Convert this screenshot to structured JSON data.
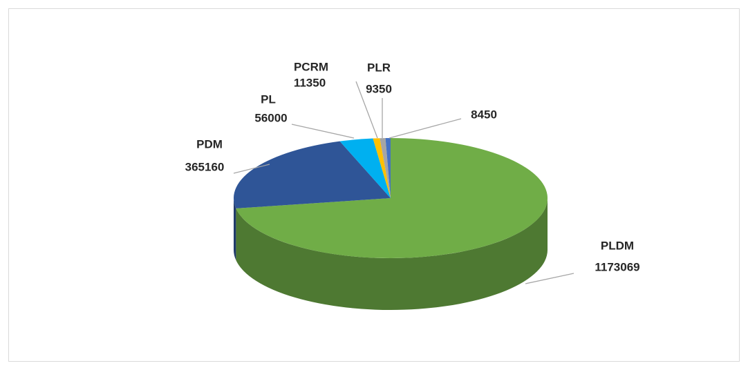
{
  "chart_data": {
    "type": "pie",
    "categories": [
      "PLDM",
      "PDM",
      "PL",
      "PCRM",
      "PLR",
      null
    ],
    "values": [
      1173069,
      365160,
      56000,
      11350,
      9350,
      8450
    ],
    "colors": [
      "#70ad47",
      "#2f5597",
      "#00b0f0",
      "#ffc000",
      "#a5a5a5",
      "#4472c4"
    ]
  }
}
